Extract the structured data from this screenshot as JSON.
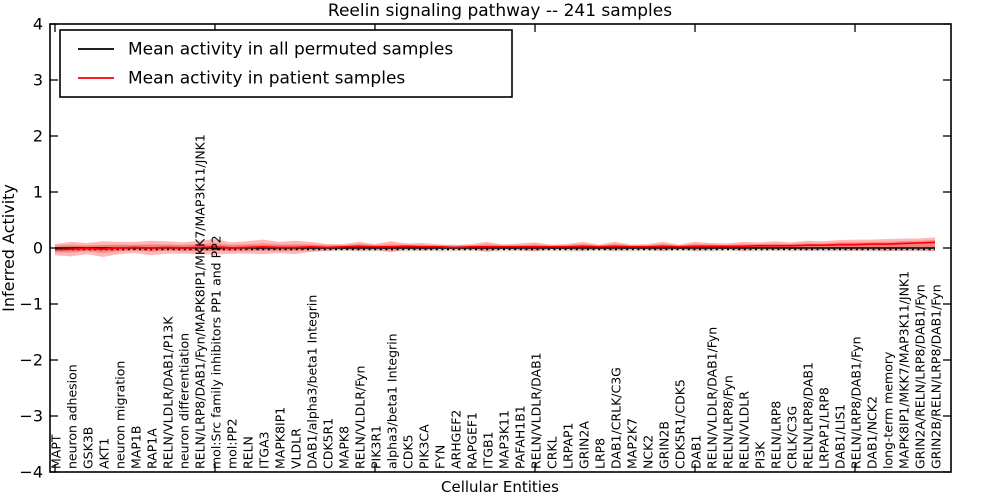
{
  "chart_data": {
    "type": "line",
    "title": "Reelin signaling pathway -- 241 samples",
    "xlabel": "Cellular Entities",
    "ylabel": "Inferred Activity",
    "ylim": [
      -4,
      4
    ],
    "yticks": [
      4,
      3,
      2,
      1,
      0,
      -1,
      -2,
      -3,
      -4
    ],
    "ytick_labels": [
      "4",
      "3",
      "2",
      "1",
      "0",
      "−1",
      "−2",
      "−3",
      "−4"
    ],
    "x_major_tick_every": 10,
    "grid": false,
    "legend_position": "upper-left",
    "axis_color": "#000000",
    "background": "#ffffff",
    "categories": [
      "MAPT",
      "neuron adhesion",
      "GSK3B",
      "AKT1",
      "neuron migration",
      "MAP1B",
      "RAP1A",
      "RELN/VLDLR/DAB1/P13K",
      "neuron differentiation",
      "RELN/LRP8/DAB1/Fyn/MAPK8IP1/MKK7/MAP3K11/JNK1",
      "mol:Src family inhibitors PP1 and PP2",
      "mol:PP2",
      "RELN",
      "ITGA3",
      "MAPK8IP1",
      "VLDLR",
      "DAB1/alpha3/beta1 Integrin",
      "CDK5R1",
      "MAPK8",
      "RELN/VLDLR/Fyn",
      "PIK3R1",
      "alpha3/beta1 Integrin",
      "CDK5",
      "PIK3CA",
      "FYN",
      "ARHGEF2",
      "RAPGEF1",
      "ITGB1",
      "MAP3K11",
      "PAFAH1B1",
      "RELN/VLDLR/DAB1",
      "CRKL",
      "LRPAP1",
      "GRIN2A",
      "LRP8",
      "DAB1/CRLK/C3G",
      "MAP2K7",
      "NCK2",
      "GRIN2B",
      "CDK5R1/CDK5",
      "DAB1",
      "RELN/VLDLR/DAB1/Fyn",
      "RELN/LRP8/Fyn",
      "RELN/VLDLR",
      "PI3K",
      "RELN/LRP8",
      "CRLK/C3G",
      "RELN/LRP8/DAB1",
      "LRPAP1/LRP8",
      "DAB1/LIS1",
      "RELN/LRP8/DAB1/Fyn",
      "DAB1/NCK2",
      "long-term memory",
      "MAPK8IP1/MKK7/MAP3K11/JNK1",
      "GRIN2A/RELN/LRP8/DAB1/Fyn",
      "GRIN2B/RELN/LRP8/DAB1/Fyn"
    ],
    "series": [
      {
        "name": "Mean activity in all permuted samples",
        "color": "#000000",
        "values": [
          0,
          0,
          0,
          0,
          0,
          0,
          0,
          0,
          0,
          0,
          0,
          0,
          0,
          0,
          0,
          0,
          0,
          0,
          0,
          0,
          0,
          0,
          0,
          0,
          0,
          0,
          0,
          0,
          0,
          0,
          0,
          0,
          0,
          0,
          0,
          0,
          0,
          0,
          0,
          0,
          0,
          0,
          0,
          0,
          0,
          0,
          0,
          0,
          0,
          0,
          0,
          0,
          0,
          0,
          0,
          0
        ]
      },
      {
        "name": "Mean activity in patient samples",
        "color": "#ff0000",
        "values": [
          -0.03,
          -0.02,
          -0.01,
          -0.02,
          0.0,
          0.01,
          0.0,
          0.01,
          0.0,
          0.01,
          0.02,
          0.0,
          0.01,
          0.02,
          0.01,
          0.01,
          0.02,
          0.01,
          0.02,
          0.03,
          0.02,
          0.02,
          0.03,
          0.02,
          0.02,
          0.01,
          0.02,
          0.02,
          0.02,
          0.02,
          0.02,
          0.02,
          0.02,
          0.03,
          0.02,
          0.03,
          0.02,
          0.02,
          0.03,
          0.02,
          0.03,
          0.03,
          0.03,
          0.03,
          0.04,
          0.04,
          0.04,
          0.05,
          0.05,
          0.06,
          0.06,
          0.07,
          0.07,
          0.08,
          0.09,
          0.1
        ]
      }
    ],
    "bands": [
      {
        "name": "permuted-envelope",
        "color": "#d8d8d8",
        "opacity": 0.9,
        "upper": [
          0.06,
          0.06,
          0.05,
          0.06,
          0.06,
          0.05,
          0.06,
          0.05,
          0.06,
          0.06,
          0.05,
          0.06,
          0.06,
          0.05,
          0.06,
          0.05,
          0.06,
          0.06,
          0.05,
          0.06,
          0.06,
          0.05,
          0.06,
          0.05,
          0.06,
          0.06,
          0.05,
          0.06,
          0.06,
          0.05,
          0.06,
          0.05,
          0.06,
          0.06,
          0.05,
          0.06,
          0.06,
          0.05,
          0.06,
          0.05,
          0.06,
          0.06,
          0.05,
          0.06,
          0.06,
          0.05,
          0.06,
          0.05,
          0.06,
          0.06,
          0.05,
          0.06,
          0.06,
          0.05,
          0.06,
          0.05
        ],
        "lower": [
          -0.06,
          -0.06,
          -0.05,
          -0.06,
          -0.06,
          -0.05,
          -0.06,
          -0.05,
          -0.06,
          -0.06,
          -0.05,
          -0.06,
          -0.06,
          -0.05,
          -0.06,
          -0.05,
          -0.06,
          -0.06,
          -0.05,
          -0.06,
          -0.06,
          -0.05,
          -0.06,
          -0.05,
          -0.06,
          -0.06,
          -0.05,
          -0.06,
          -0.06,
          -0.05,
          -0.06,
          -0.05,
          -0.06,
          -0.06,
          -0.05,
          -0.06,
          -0.06,
          -0.05,
          -0.06,
          -0.05,
          -0.06,
          -0.06,
          -0.05,
          -0.06,
          -0.06,
          -0.05,
          -0.06,
          -0.05,
          -0.06,
          -0.06,
          -0.05,
          -0.06,
          -0.06,
          -0.05,
          -0.06,
          -0.05
        ]
      },
      {
        "name": "patient-envelope",
        "color": "#ff4444",
        "opacity": 0.38,
        "upper": [
          0.07,
          0.11,
          0.09,
          0.12,
          0.11,
          0.11,
          0.13,
          0.12,
          0.1,
          0.13,
          0.16,
          0.1,
          0.12,
          0.15,
          0.11,
          0.13,
          0.11,
          0.07,
          0.07,
          0.11,
          0.07,
          0.12,
          0.08,
          0.09,
          0.06,
          0.05,
          0.07,
          0.11,
          0.06,
          0.08,
          0.1,
          0.06,
          0.07,
          0.11,
          0.06,
          0.11,
          0.06,
          0.07,
          0.11,
          0.06,
          0.11,
          0.09,
          0.08,
          0.11,
          0.1,
          0.12,
          0.1,
          0.13,
          0.12,
          0.14,
          0.15,
          0.15,
          0.16,
          0.17,
          0.17,
          0.19
        ],
        "lower": [
          -0.13,
          -0.15,
          -0.11,
          -0.16,
          -0.11,
          -0.09,
          -0.13,
          -0.1,
          -0.1,
          -0.11,
          -0.12,
          -0.1,
          -0.1,
          -0.11,
          -0.09,
          -0.11,
          -0.07,
          -0.05,
          -0.03,
          -0.05,
          -0.03,
          -0.08,
          -0.02,
          -0.05,
          -0.02,
          -0.03,
          -0.03,
          -0.07,
          -0.02,
          -0.04,
          -0.06,
          -0.02,
          -0.03,
          -0.05,
          -0.02,
          -0.05,
          -0.02,
          -0.03,
          -0.05,
          -0.02,
          -0.05,
          -0.03,
          -0.02,
          -0.05,
          -0.02,
          -0.04,
          -0.02,
          -0.05,
          -0.03,
          -0.04,
          -0.05,
          -0.04,
          -0.05,
          -0.05,
          -0.04,
          -0.06
        ]
      }
    ]
  }
}
